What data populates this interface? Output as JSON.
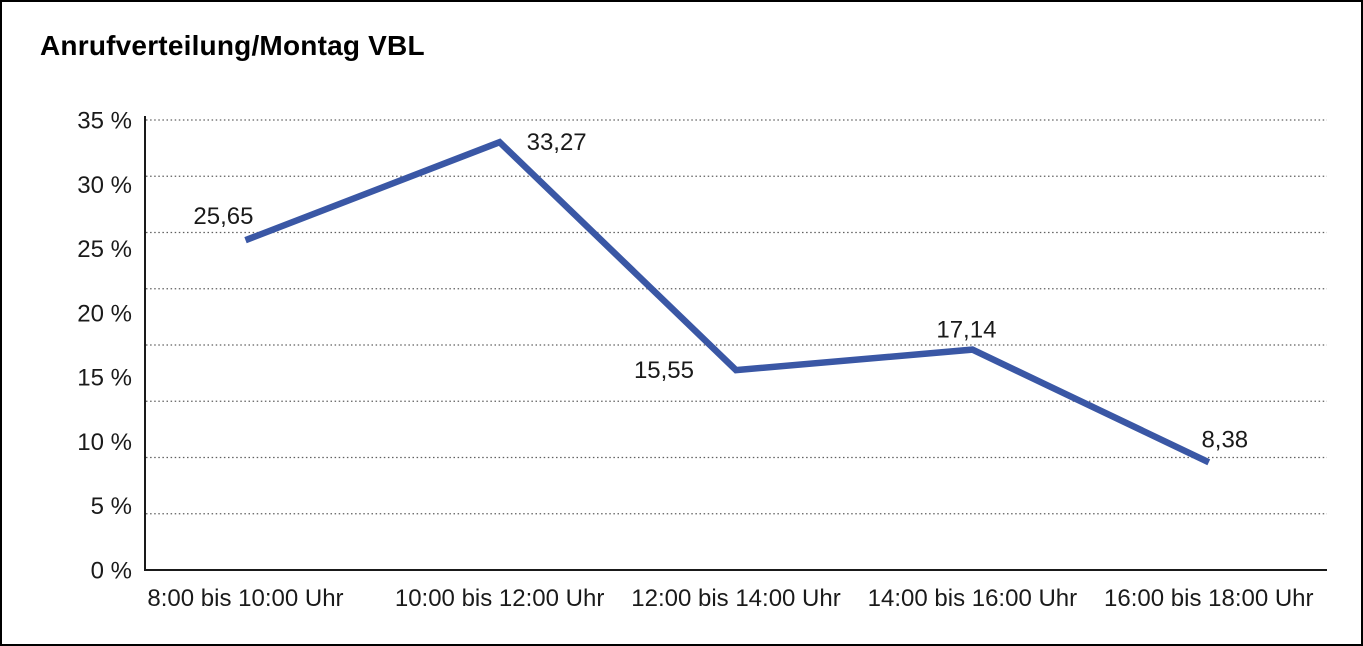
{
  "window": {
    "title": "Anrufverteilung/Montag VBL"
  },
  "chart_data": {
    "type": "line",
    "title": "Anrufverteilung/Montag VBL",
    "categories": [
      "8:00 bis 10:00 Uhr",
      "10:00 bis 12:00 Uhr",
      "12:00 bis 14:00 Uhr",
      "14:00 bis 16:00 Uhr",
      "16:00 bis 18:00 Uhr"
    ],
    "values": [
      25.65,
      33.27,
      15.55,
      17.14,
      8.38
    ],
    "point_labels": [
      "25,65",
      "33,27",
      "15,55",
      "17,14",
      "8,38"
    ],
    "xlabel": "",
    "ylabel": "",
    "ylim": [
      0,
      35
    ],
    "ytick_step": 5,
    "ytick_labels": [
      "0 %",
      "5 %",
      "10 %",
      "15 %",
      "20 %",
      "25 %",
      "30 %",
      "35 %"
    ],
    "grid": "dotted-horizontal",
    "gridline_intervals": 8,
    "legend": "none",
    "colors": {
      "line": "#3a57a5",
      "axis": "#1a1a1a",
      "gridline": "#5f5f5f",
      "text": "#1a1a1a",
      "background": "#ffffff",
      "frame_border": "#000000"
    }
  }
}
